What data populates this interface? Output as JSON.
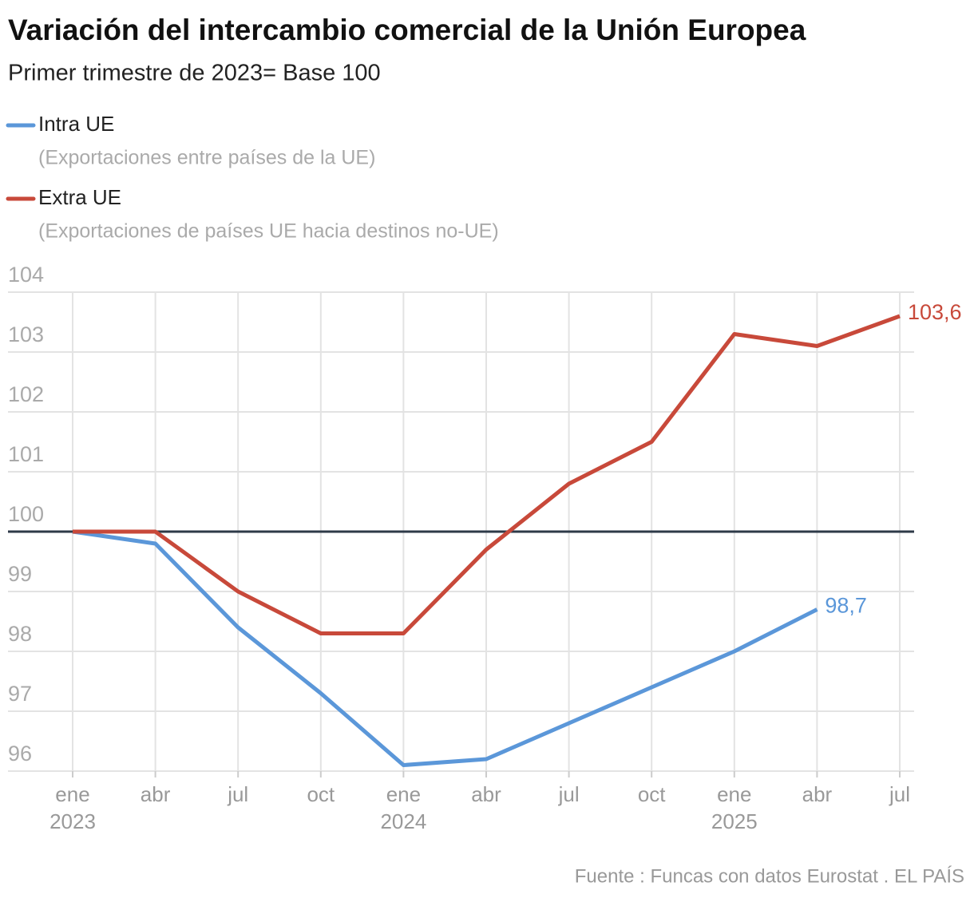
{
  "chart_data": {
    "type": "line",
    "title": "Variación del intercambio comercial de la Unión Europea",
    "subtitle": "Primer trimestre de 2023= Base 100",
    "source": "Fuente : Funcas con datos Eurostat . EL PAÍS",
    "categories": [
      "ene",
      "abr",
      "jul",
      "oct",
      "ene",
      "abr",
      "jul",
      "oct",
      "ene",
      "abr",
      "jul"
    ],
    "category_years": [
      "2023",
      null,
      null,
      null,
      "2024",
      null,
      null,
      null,
      "2025",
      null,
      null
    ],
    "series": [
      {
        "name": "Intra UE",
        "description": "(Exportaciones entre países de la UE)",
        "color": "#5b97d9",
        "values": [
          100,
          99.8,
          98.4,
          97.3,
          96.1,
          96.2,
          96.8,
          97.4,
          98.0,
          98.7,
          null
        ],
        "value_labels": [
          null,
          null,
          null,
          null,
          null,
          null,
          null,
          null,
          null,
          "98,7",
          null
        ]
      },
      {
        "name": "Extra UE",
        "description": "(Exportaciones de países UE hacia destinos no-UE)",
        "color": "#c8493a",
        "values": [
          100,
          100,
          99.0,
          98.3,
          98.3,
          99.7,
          100.8,
          101.5,
          103.3,
          103.1,
          103.6
        ],
        "value_labels": [
          null,
          null,
          null,
          null,
          null,
          null,
          null,
          null,
          null,
          null,
          "103,6"
        ]
      }
    ],
    "ylim": [
      96,
      104
    ],
    "yticks": [
      96,
      97,
      98,
      99,
      100,
      101,
      102,
      103,
      104
    ],
    "baseline": 100,
    "grid": true
  }
}
